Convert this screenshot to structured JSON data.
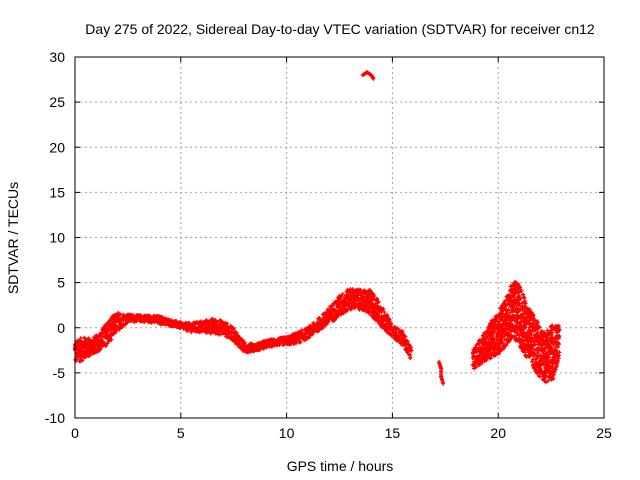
{
  "chart_data": {
    "type": "scatter",
    "title": "Day 275 of 2022, Sidereal Day-to-day VTEC variation (SDTVAR) for receiver cn12",
    "xlabel": "GPS time / hours",
    "ylabel": "SDTVAR / TECUs",
    "xlim": [
      0,
      25
    ],
    "ylim": [
      -10,
      30
    ],
    "xticks": [
      "0",
      "5",
      "10",
      "15",
      "20",
      "25"
    ],
    "yticks": [
      "-10",
      "-5",
      "0",
      "5",
      "10",
      "15",
      "20",
      "25",
      "30"
    ],
    "grid": true,
    "marker_color": "#ff0000",
    "series": [
      {
        "name": "SDTVAR",
        "bands": [
          {
            "x": [
              0.0,
              0.4,
              0.8,
              1.2,
              1.6,
              2.0,
              2.5,
              3.0,
              3.5,
              4.0,
              4.5,
              5.0,
              5.5,
              6.0,
              6.5,
              7.0,
              7.5,
              8.0,
              8.5,
              9.0,
              9.5,
              10.0,
              10.5,
              11.0,
              11.5,
              12.0,
              12.5,
              13.0,
              13.5,
              14.0,
              14.5,
              15.0,
              15.5,
              15.9
            ],
            "ymin": [
              -4.0,
              -3.6,
              -3.0,
              -2.5,
              -1.8,
              -0.4,
              0.6,
              0.7,
              0.6,
              0.4,
              0.2,
              -0.1,
              -0.5,
              -0.6,
              -0.7,
              -0.8,
              -1.5,
              -2.8,
              -2.6,
              -2.3,
              -2.0,
              -1.9,
              -1.8,
              -1.2,
              -0.4,
              0.4,
              1.2,
              2.0,
              2.0,
              1.3,
              0.0,
              -1.0,
              -2.0,
              -3.6
            ],
            "ymax": [
              -1.5,
              -1.0,
              -1.2,
              -0.5,
              1.0,
              1.7,
              1.5,
              1.4,
              1.4,
              1.3,
              0.9,
              0.6,
              0.5,
              0.8,
              1.0,
              0.8,
              0.0,
              -1.6,
              -1.8,
              -1.4,
              -1.2,
              -1.0,
              -0.5,
              0.0,
              1.0,
              2.2,
              3.6,
              4.4,
              4.2,
              4.2,
              2.5,
              0.3,
              -0.4,
              -2.2
            ]
          },
          {
            "x": [
              18.8,
              19.2,
              19.6,
              20.0,
              20.4,
              20.7,
              21.0,
              21.4,
              21.8,
              22.2,
              22.6,
              22.9
            ],
            "ymin": [
              -4.6,
              -4.0,
              -3.5,
              -3.0,
              -2.0,
              -1.0,
              -2.0,
              -3.5,
              -5.0,
              -6.2,
              -5.8,
              -3.2
            ],
            "ymax": [
              -2.5,
              -1.0,
              0.5,
              1.8,
              3.5,
              5.4,
              4.8,
              2.5,
              1.0,
              -0.5,
              0.5,
              0.4
            ]
          }
        ],
        "clusters": [
          {
            "x": [
              13.6,
              13.8,
              14.0,
              14.1
            ],
            "y": [
              28.0,
              28.3,
              28.0,
              27.6
            ]
          },
          {
            "x": [
              17.2,
              17.3,
              17.3,
              17.4
            ],
            "y": [
              -3.8,
              -4.5,
              -5.4,
              -6.2
            ]
          },
          {
            "x": [
              0.0,
              0.2
            ],
            "y": [
              -1.9,
              -1.4
            ]
          }
        ]
      }
    ]
  }
}
